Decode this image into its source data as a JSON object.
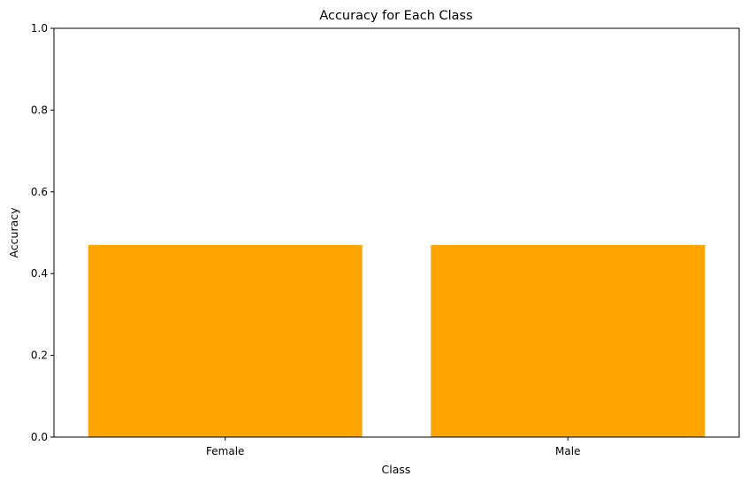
{
  "chart_data": {
    "type": "bar",
    "title": "Accuracy for Each Class",
    "xlabel": "Class",
    "ylabel": "Accuracy",
    "categories": [
      "Female",
      "Male"
    ],
    "values": [
      0.47,
      0.47
    ],
    "ylim": [
      0,
      1
    ],
    "yticks": [
      "0.0",
      "0.2",
      "0.4",
      "0.6",
      "0.8",
      "1.0"
    ],
    "bar_color": "#ffa500",
    "grid": false,
    "legend": "none"
  }
}
